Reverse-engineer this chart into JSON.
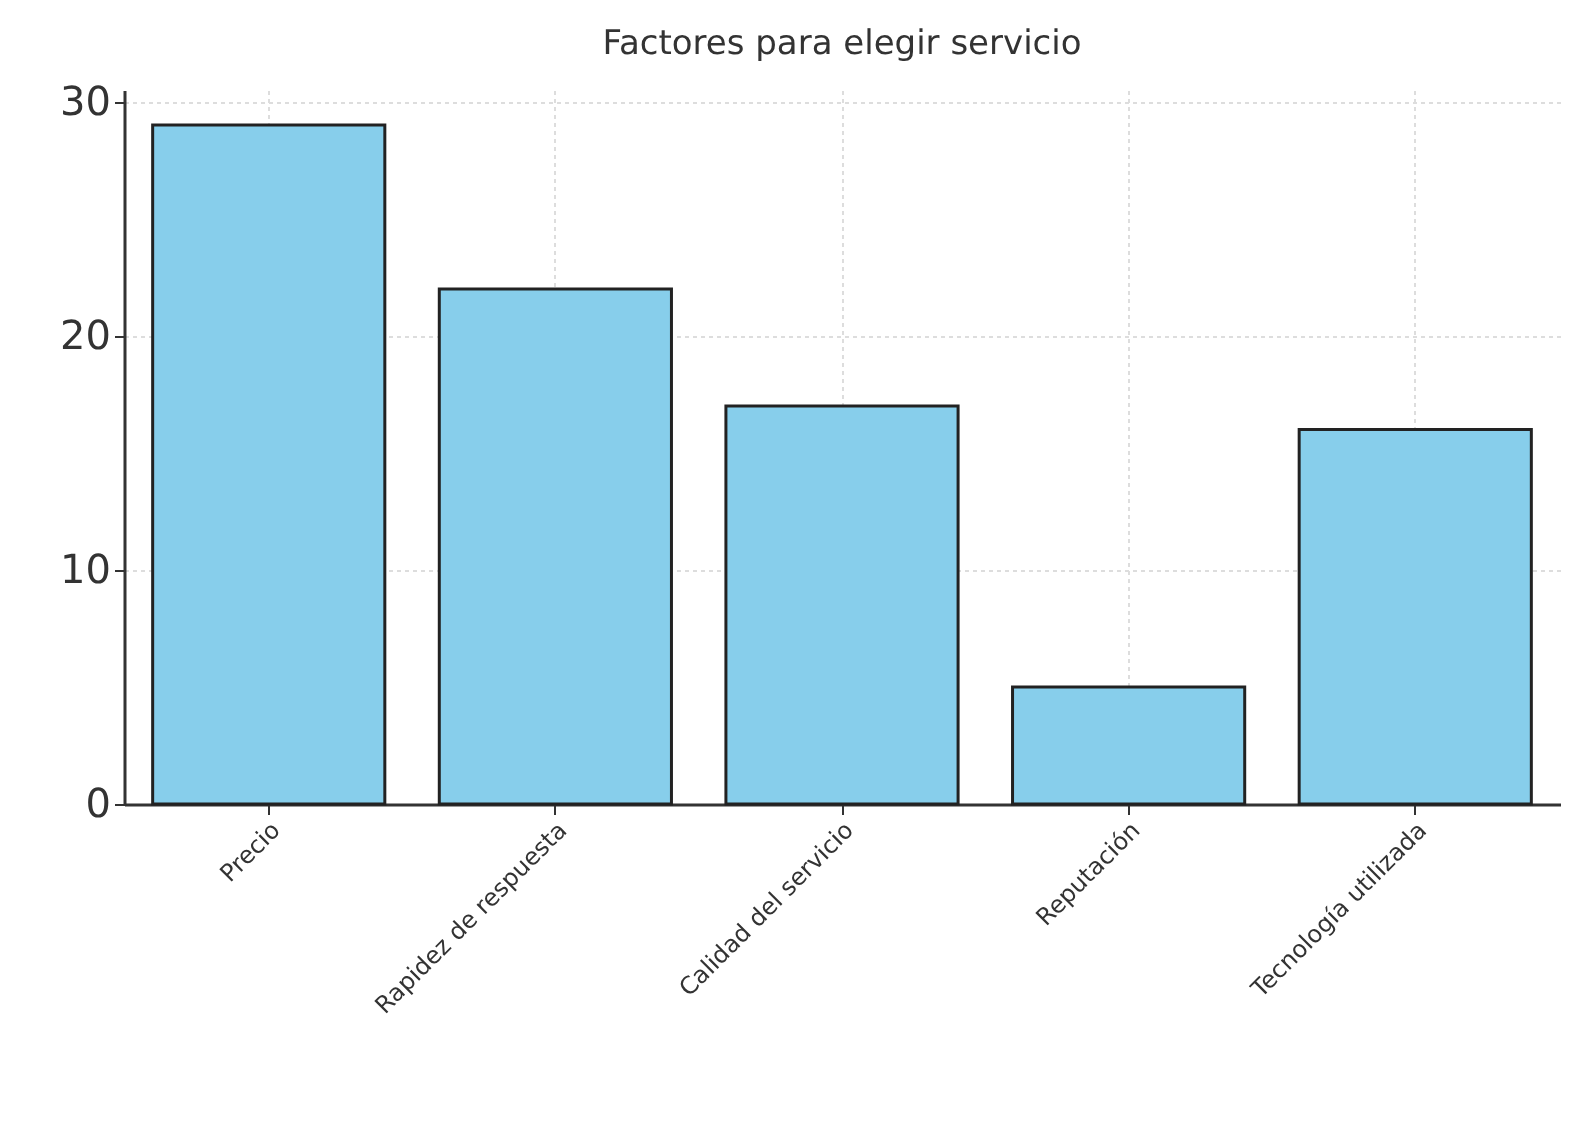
{
  "chart_data": {
    "type": "bar",
    "title": "Factores para elegir servicio",
    "categories": [
      "Precio",
      "Rapidez de respuesta",
      "Calidad del servicio",
      "Reputación",
      "Tecnología utilizada"
    ],
    "values": [
      29,
      22,
      17,
      5,
      16
    ],
    "color": "#87ceeb",
    "ylim": [
      0,
      30.5
    ],
    "yticks": [
      0,
      10,
      20,
      30
    ],
    "grid": true
  }
}
